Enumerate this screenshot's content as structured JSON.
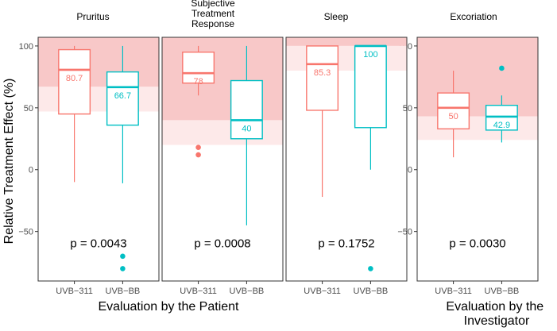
{
  "chart_data": {
    "type": "boxplot",
    "ylabel": "Relative Treatment Effect (%)",
    "ylim": [
      -90,
      107
    ],
    "yticks": [
      -50,
      0,
      50,
      100
    ],
    "groups": [
      {
        "label": "Evaluation by the Patient"
      },
      {
        "label_lines": [
          "Evaluation by the",
          "Investigator"
        ]
      }
    ],
    "colors": {
      "UVB-311": "#f8766d",
      "UVB-BB": "#00bfc4",
      "band_dark": "#f8c8c8",
      "band_light": "#fde9e9",
      "panel_border": "#333333"
    },
    "panels": [
      {
        "title_lines": [
          "Pruritus"
        ],
        "p_value": "p = 0.0043",
        "zones": {
          "dark_from": 67,
          "light_from": 47
        },
        "categories": [
          "UVB−311",
          "UVB−BB"
        ],
        "boxes": [
          {
            "series": "UVB-311",
            "min": -10,
            "q1": 45,
            "median": 80.7,
            "q3": 97,
            "max": 100,
            "median_label": "80.7",
            "outliers": []
          },
          {
            "series": "UVB-BB",
            "min": -11,
            "q1": 36,
            "median": 66.7,
            "q3": 79,
            "max": 100,
            "median_label": "66.7",
            "outliers": [
              -70,
              -80
            ]
          }
        ]
      },
      {
        "title_lines": [
          "Subjective",
          "Treatment",
          "Response"
        ],
        "p_value": "p = 0.0008",
        "zones": {
          "dark_from": 40,
          "light_from": 20
        },
        "categories": [
          "UVB−311",
          "UVB−BB"
        ],
        "boxes": [
          {
            "series": "UVB-311",
            "min": 60,
            "q1": 70,
            "median": 78,
            "q3": 95,
            "max": 100,
            "median_label": "78",
            "outliers": [
              18,
              12
            ]
          },
          {
            "series": "UVB-BB",
            "min": -45,
            "q1": 25,
            "median": 40,
            "q3": 72,
            "max": 100,
            "median_label": "40",
            "outliers": []
          }
        ]
      },
      {
        "title_lines": [
          "Sleep"
        ],
        "p_value": "p = 0.1752",
        "zones": {
          "dark_from": 100,
          "light_from": 80
        },
        "categories": [
          "UVB−311",
          "UVB−BB"
        ],
        "boxes": [
          {
            "series": "UVB-311",
            "min": -22,
            "q1": 48,
            "median": 85.3,
            "q3": 100,
            "max": 100,
            "median_label": "85.3",
            "outliers": []
          },
          {
            "series": "UVB-BB",
            "min": 0,
            "q1": 34,
            "median": 100,
            "q3": 100,
            "max": 100,
            "median_label": "100",
            "outliers": [
              -80
            ]
          }
        ]
      },
      {
        "title_lines": [
          "Excoriation"
        ],
        "p_value": "p = 0.0030",
        "zones": {
          "dark_from": 43,
          "light_from": 24
        },
        "categories": [
          "UVB−311",
          "UVB−BB"
        ],
        "boxes": [
          {
            "series": "UVB-311",
            "min": 10,
            "q1": 33,
            "median": 50,
            "q3": 62,
            "max": 80,
            "median_label": "50",
            "outliers": []
          },
          {
            "series": "UVB-BB",
            "min": 22,
            "q1": 32,
            "median": 42.9,
            "q3": 52,
            "max": 60,
            "median_label": "42.9",
            "outliers": [
              82
            ]
          }
        ]
      }
    ]
  }
}
